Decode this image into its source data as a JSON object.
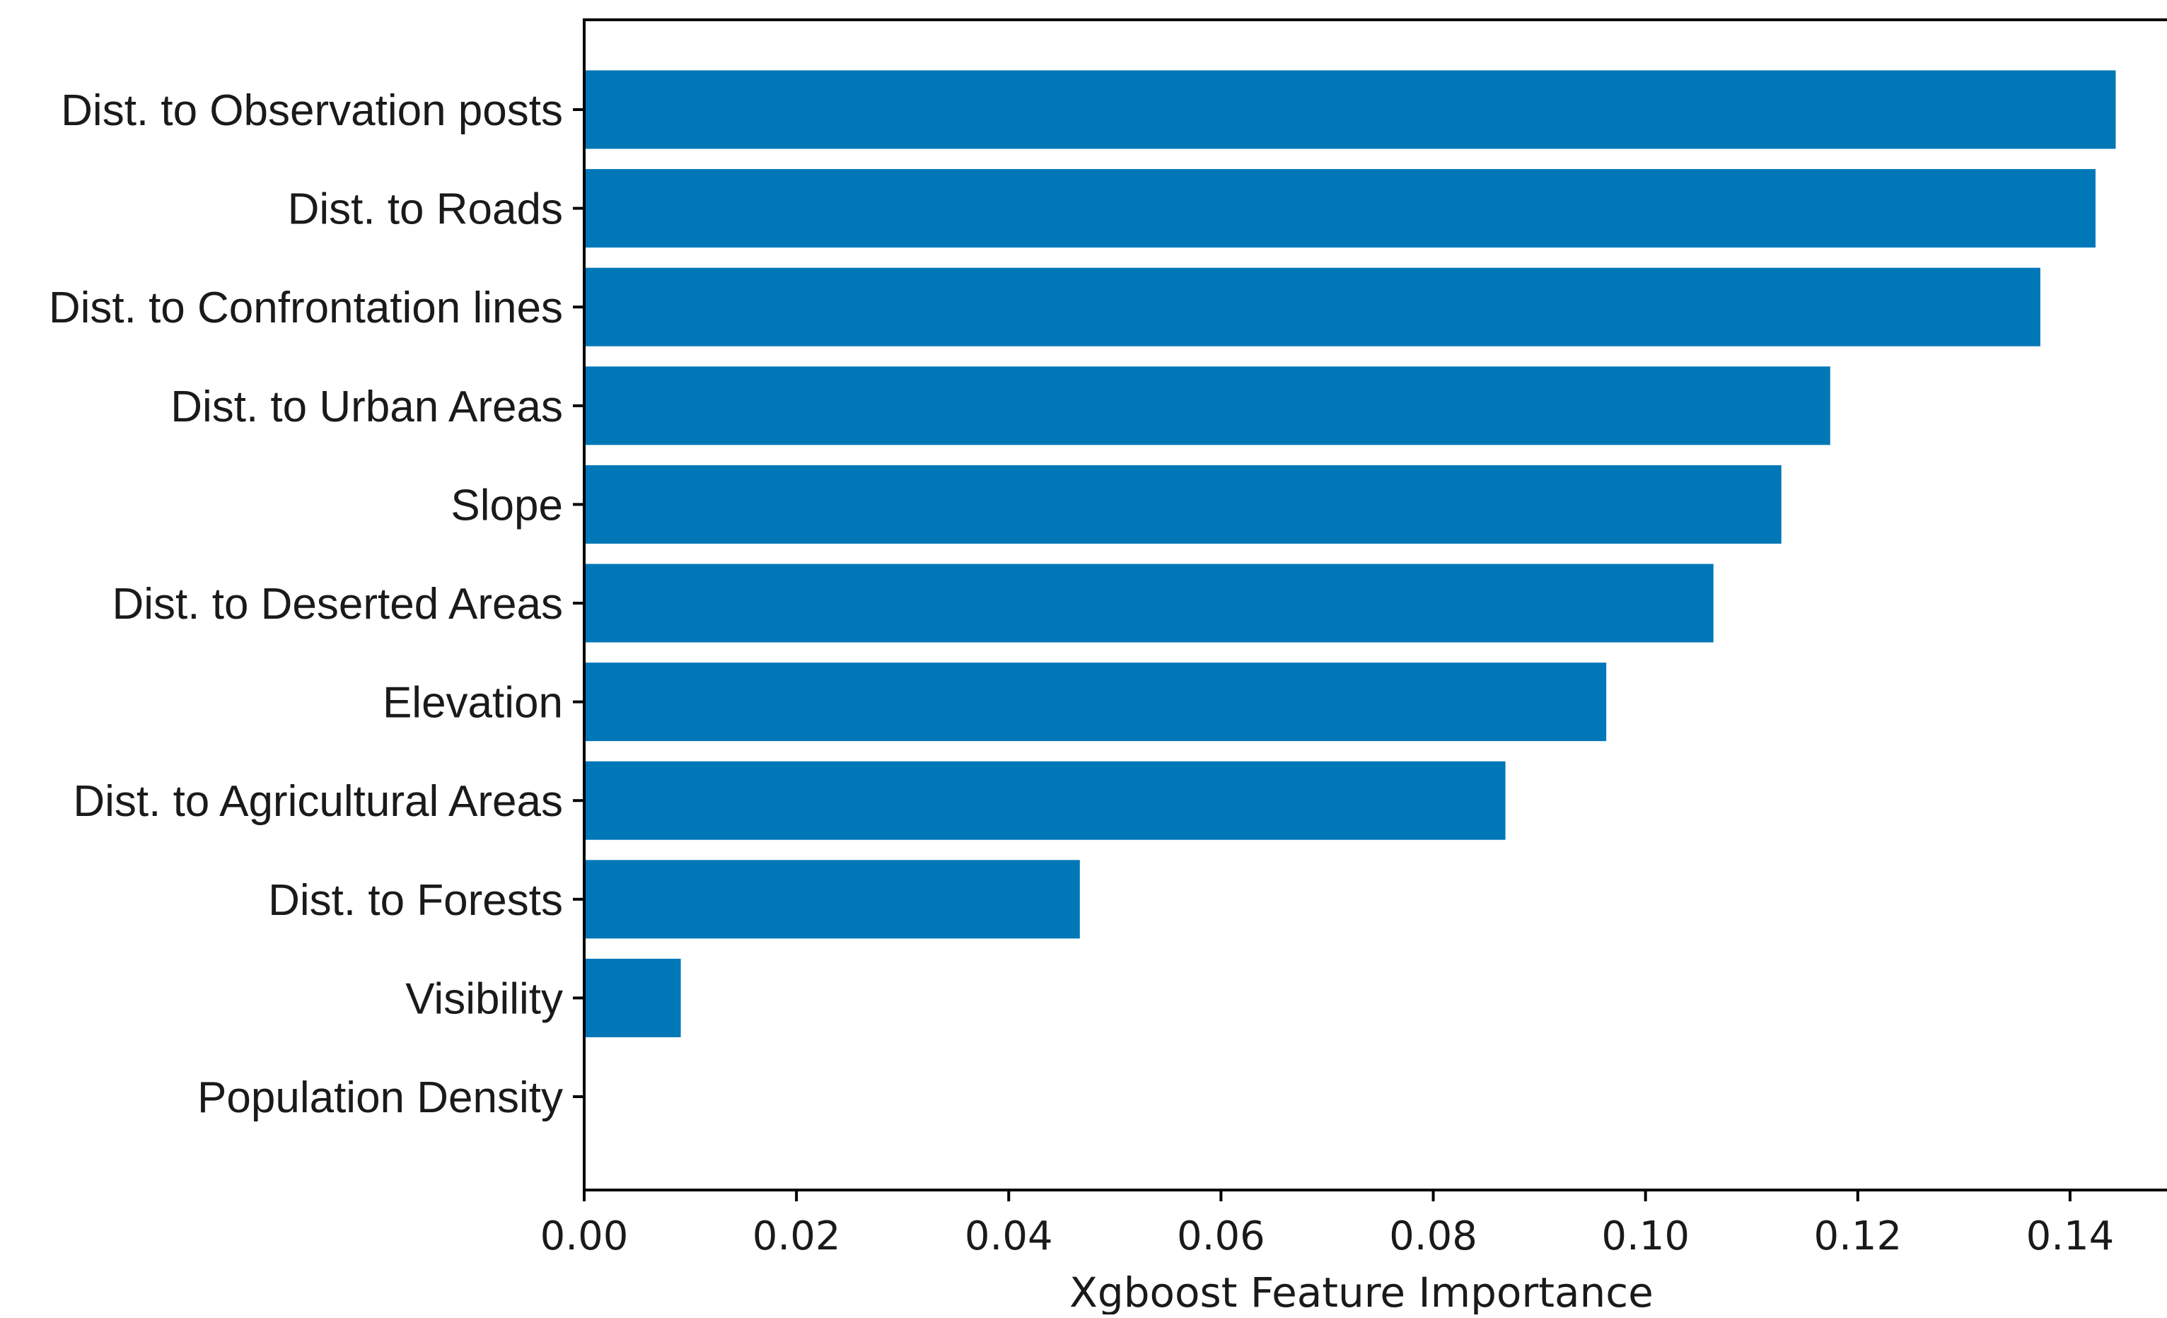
{
  "chart_data": {
    "type": "bar",
    "orientation": "horizontal",
    "categories": [
      "Dist. to Observation posts",
      "Dist. to Roads",
      "Dist. to Confrontation lines",
      "Dist. to Urban Areas",
      "Slope",
      "Dist. to Deserted Areas",
      "Elevation",
      "Dist. to Agricultural Areas",
      "Dist. to Forests",
      "Visibility",
      "Population Density"
    ],
    "values": [
      0.1443,
      0.1424,
      0.1372,
      0.1174,
      0.1128,
      0.1064,
      0.0963,
      0.0868,
      0.0467,
      0.0091,
      0.0
    ],
    "xlim": [
      0.0,
      0.1518
    ],
    "xticks": [
      0.0,
      0.02,
      0.04,
      0.06,
      0.08,
      0.1,
      0.12,
      0.14
    ],
    "xtick_labels": [
      "0.00",
      "0.02",
      "0.04",
      "0.06",
      "0.08",
      "0.10",
      "0.12",
      "0.14"
    ],
    "title": "",
    "xlabel": "Xgboost Feature Importance",
    "ylabel": "",
    "grid": false,
    "legend": "none",
    "bar_color": "#0077b7",
    "axis_color": "#000000"
  }
}
